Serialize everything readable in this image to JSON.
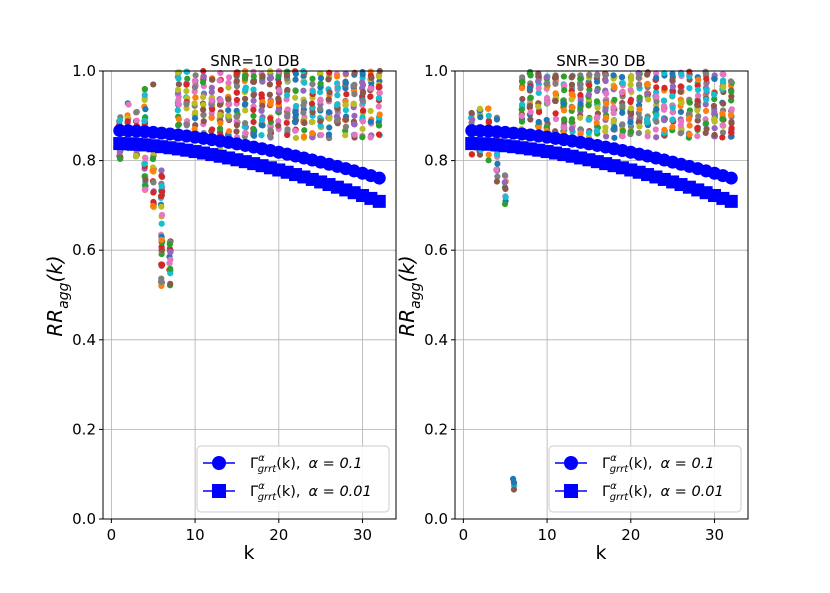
{
  "chart_data": [
    {
      "type": "scatter",
      "title": "SNR=10 DB",
      "xlabel": "k",
      "ylabel_main": "RR",
      "ylabel_sub": "agg",
      "ylabel_arg": "(k)",
      "xlim": [
        -1,
        34
      ],
      "ylim": [
        0.0,
        1.0
      ],
      "xticks": [
        0,
        10,
        20,
        30
      ],
      "yticks": [
        0.0,
        0.2,
        0.4,
        0.6,
        0.8,
        1.0
      ],
      "xtick_labels": [
        "0",
        "10",
        "20",
        "30"
      ],
      "ytick_labels": [
        "0.0",
        "0.2",
        "0.4",
        "0.6",
        "0.8",
        "1.0"
      ],
      "grid": true,
      "legend_position": "lower-right",
      "series": [
        {
          "name": "Γ_grrt^α(k), α = 0.1",
          "marker": "circle",
          "color": "#0000ff",
          "k_start": 1,
          "k_end": 32,
          "y_start": 0.867,
          "y_end": 0.761
        },
        {
          "name": "Γ_grrt^α(k), α = 0.01",
          "marker": "square",
          "color": "#0000ff",
          "k_start": 1,
          "k_end": 32,
          "y_start": 0.838,
          "y_end": 0.709
        }
      ],
      "scatter_ranges": [
        {
          "k": 1,
          "min": 0.8,
          "max": 0.92
        },
        {
          "k": 2,
          "min": 0.81,
          "max": 0.93
        },
        {
          "k": 3,
          "min": 0.8,
          "max": 0.94
        },
        {
          "k": 4,
          "min": 0.73,
          "max": 0.96
        },
        {
          "k": 5,
          "min": 0.69,
          "max": 0.84
        },
        {
          "k": 6,
          "min": 0.52,
          "max": 0.78
        },
        {
          "k": 7,
          "min": 0.52,
          "max": 0.65
        },
        {
          "k_from": 8,
          "k_to": 32,
          "min": 0.85,
          "max": 1.0
        }
      ],
      "outliers": [
        {
          "k": 4,
          "y": 0.96
        },
        {
          "k": 5,
          "y": 0.97
        },
        {
          "k": 13,
          "y": 0.83
        }
      ]
    },
    {
      "type": "scatter",
      "title": "SNR=30 DB",
      "xlabel": "k",
      "ylabel_main": "RR",
      "ylabel_sub": "agg",
      "ylabel_arg": "(k)",
      "xlim": [
        -1,
        34
      ],
      "ylim": [
        0.0,
        1.0
      ],
      "xticks": [
        0,
        10,
        20,
        30
      ],
      "yticks": [
        0.0,
        0.2,
        0.4,
        0.6,
        0.8,
        1.0
      ],
      "xtick_labels": [
        "0",
        "10",
        "20",
        "30"
      ],
      "ytick_labels": [
        "0.0",
        "0.2",
        "0.4",
        "0.6",
        "0.8",
        "1.0"
      ],
      "grid": true,
      "legend_position": "lower-right",
      "series": [
        {
          "name": "Γ_grrt^α(k), α = 0.1",
          "marker": "circle",
          "color": "#0000ff",
          "k_start": 1,
          "k_end": 32,
          "y_start": 0.867,
          "y_end": 0.761
        },
        {
          "name": "Γ_grrt^α(k), α = 0.01",
          "marker": "square",
          "color": "#0000ff",
          "k_start": 1,
          "k_end": 32,
          "y_start": 0.838,
          "y_end": 0.709
        }
      ],
      "scatter_ranges": [
        {
          "k": 1,
          "min": 0.81,
          "max": 0.91
        },
        {
          "k": 2,
          "min": 0.81,
          "max": 0.92
        },
        {
          "k": 3,
          "min": 0.8,
          "max": 0.92
        },
        {
          "k": 4,
          "min": 0.75,
          "max": 0.91
        },
        {
          "k": 5,
          "min": 0.7,
          "max": 0.77
        },
        {
          "k": 6,
          "min": 0.065,
          "max": 0.09
        },
        {
          "k_from": 7,
          "k_to": 32,
          "min": 0.85,
          "max": 1.0
        }
      ],
      "outliers": [
        {
          "k": 8,
          "y": 0.94
        }
      ]
    }
  ],
  "legend": {
    "items": [
      {
        "gamma": "Γ",
        "sup": "α",
        "sub": "grrt",
        "arg": "(k),",
        "alpha": "α = 0.1"
      },
      {
        "gamma": "Γ",
        "sup": "α",
        "sub": "grrt",
        "arg": "(k),",
        "alpha": "α = 0.01"
      }
    ]
  },
  "colors": {
    "line": "#0000ff",
    "grid": "#b0b0b0",
    "palette": [
      "#1f77b4",
      "#ff7f0e",
      "#2ca02c",
      "#d62728",
      "#9467bd",
      "#8c564b",
      "#e377c2",
      "#7f7f7f",
      "#bcbd22",
      "#17becf"
    ]
  }
}
